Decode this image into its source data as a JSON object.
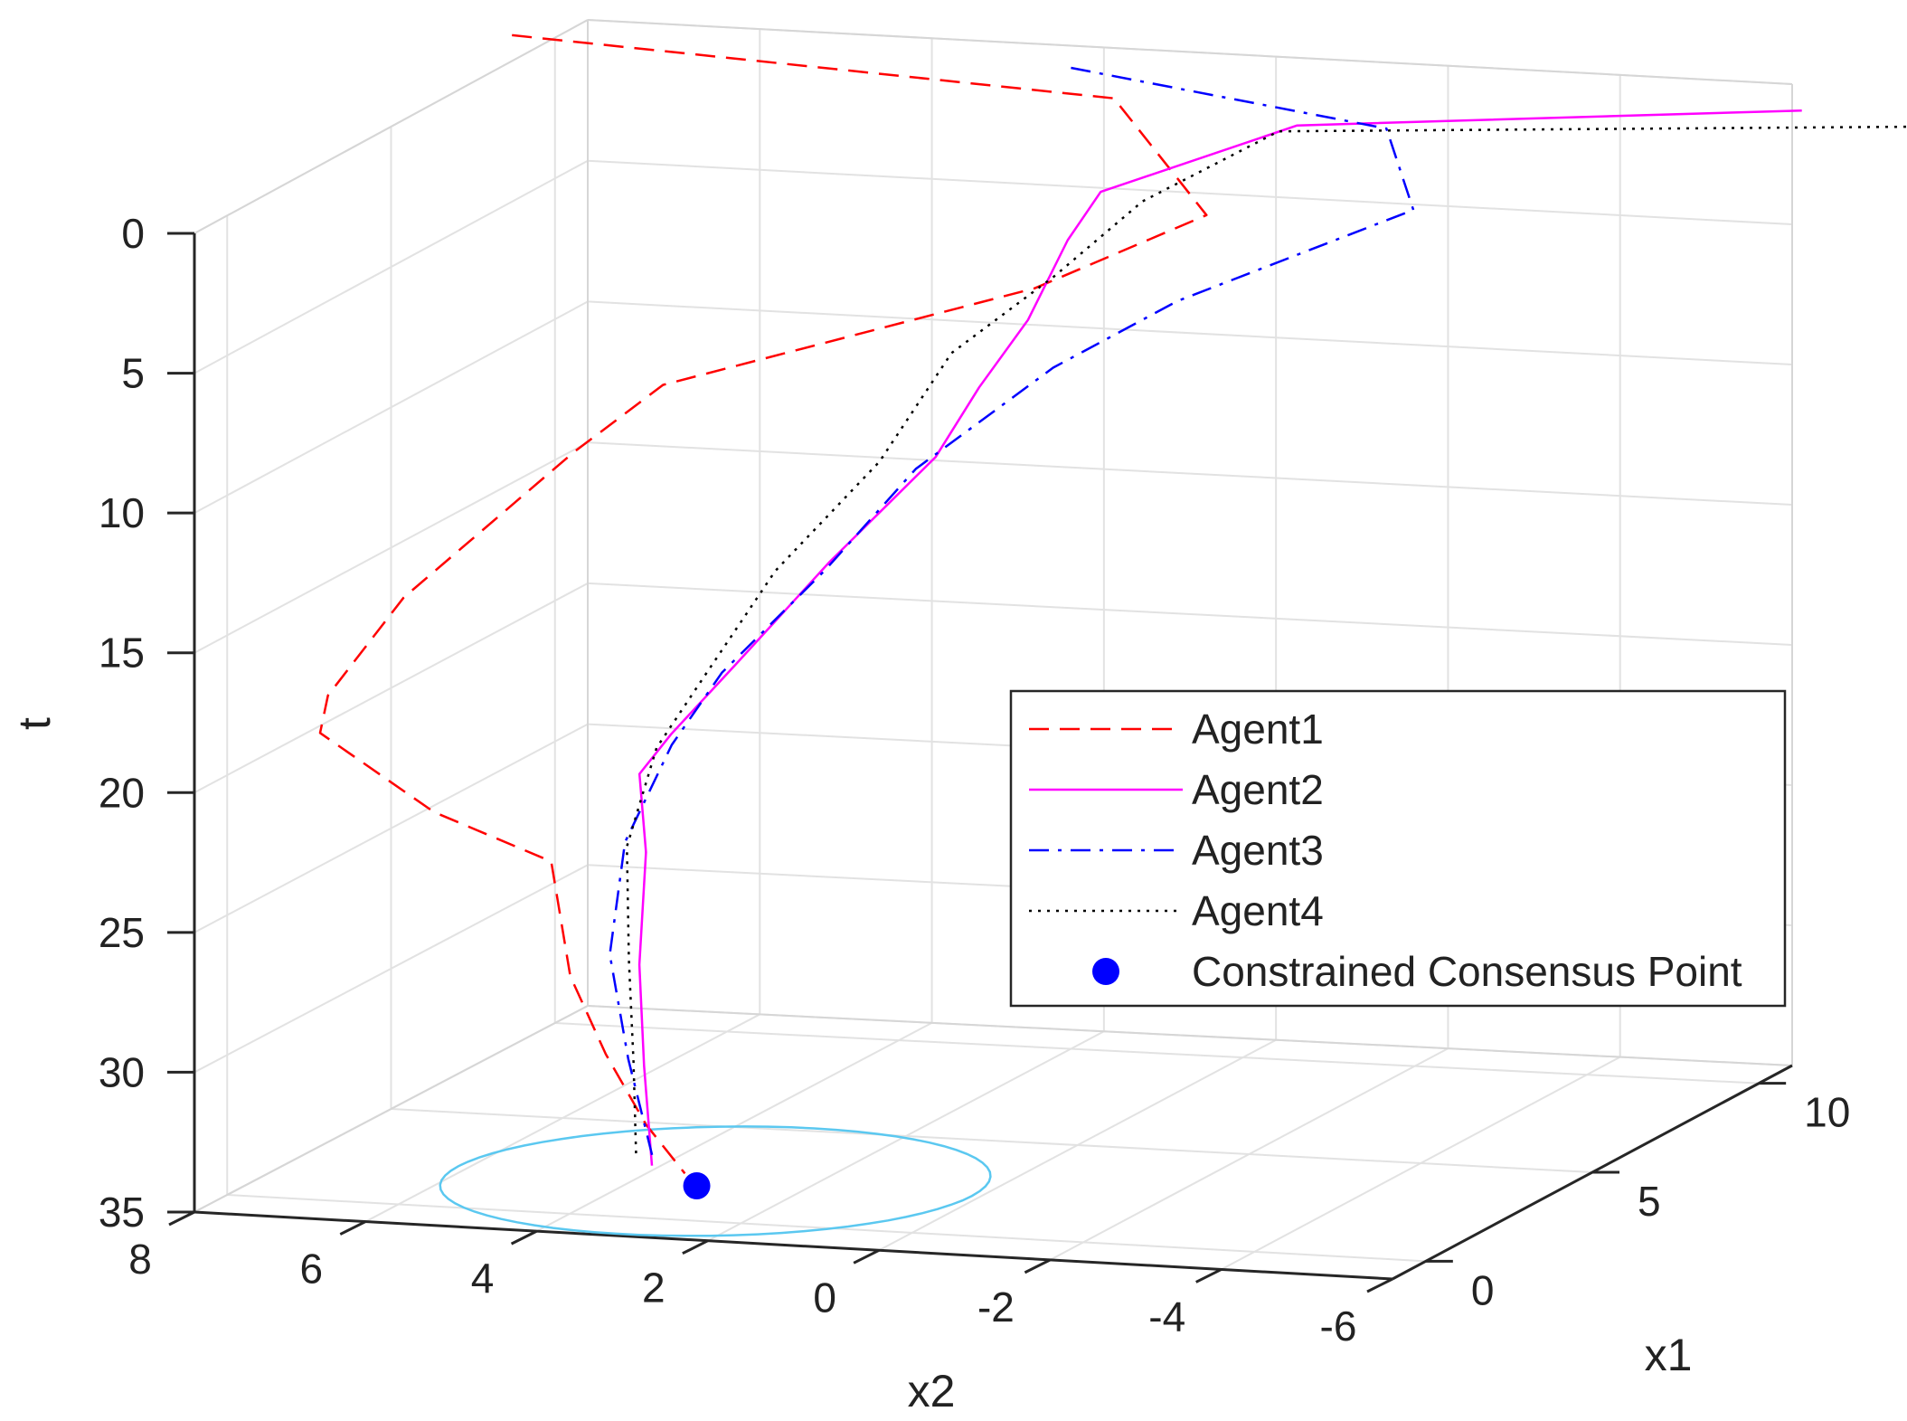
{
  "chart_data": {
    "type": "line",
    "title": "",
    "axes": {
      "x1": {
        "label": "x1",
        "ticks": [
          "0",
          "5",
          "10"
        ],
        "range": [
          -1,
          11
        ]
      },
      "x2": {
        "label": "x2",
        "ticks": [
          "8",
          "6",
          "4",
          "2",
          "0",
          "-2",
          "-4",
          "-6"
        ],
        "range": [
          8,
          -6
        ]
      },
      "t": {
        "label": "t",
        "ticks": [
          "0",
          "5",
          "10",
          "15",
          "20",
          "25",
          "30",
          "35"
        ],
        "range": [
          0,
          35
        ],
        "reversed": true
      }
    },
    "grid": true,
    "legend_position": "right",
    "series": [
      {
        "name": "Agent1",
        "color": "#ff0000",
        "style": "dashed",
        "points": [
          [
            10,
            8.5,
            0
          ],
          [
            10,
            1.5,
            1
          ],
          [
            7.6,
            -0.5,
            3
          ],
          [
            6.3,
            1.0,
            5
          ],
          [
            4.4,
            4.6,
            8
          ],
          [
            3.5,
            5.3,
            10
          ],
          [
            1.2,
            6.4,
            14
          ],
          [
            0.2,
            6.9,
            17
          ],
          [
            -0.3,
            6.8,
            18
          ],
          [
            -1.0,
            5.2,
            20
          ],
          [
            -1.6,
            3.6,
            21
          ],
          [
            -1.8,
            3.3,
            25
          ],
          [
            -1.5,
            3.0,
            28
          ],
          [
            -0.8,
            2.8,
            31
          ],
          [
            -0.4,
            2.5,
            33
          ]
        ]
      },
      {
        "name": "Agent2",
        "color": "#ff00ff",
        "style": "solid",
        "points": [
          [
            10,
            -6.5,
            0
          ],
          [
            9.3,
            -0.9,
            1
          ],
          [
            8.3,
            1.0,
            3
          ],
          [
            7.3,
            1.0,
            4
          ],
          [
            6.1,
            1.0,
            6
          ],
          [
            5.4,
            1.3,
            8
          ],
          [
            4.6,
            1.5,
            10
          ],
          [
            3.2,
            2.2,
            13
          ],
          [
            1.9,
            2.8,
            16
          ],
          [
            1.0,
            3.2,
            18
          ],
          [
            0.3,
            3.3,
            19
          ],
          [
            -0.8,
            2.8,
            21
          ],
          [
            -1.0,
            2.8,
            25
          ],
          [
            -0.6,
            2.9,
            29
          ],
          [
            -0.1,
            3.0,
            33
          ]
        ]
      },
      {
        "name": "Agent3",
        "color": "#0000ff",
        "style": "dashdot",
        "points": [
          [
            10,
            2.0,
            0
          ],
          [
            9.4,
            -1.9,
            1
          ],
          [
            8.4,
            -2.6,
            3
          ],
          [
            6.2,
            -0.7,
            5
          ],
          [
            5.3,
            0.4,
            7
          ],
          [
            4.0,
            1.5,
            10
          ],
          [
            2.8,
            2.1,
            13
          ],
          [
            1.5,
            2.8,
            16
          ],
          [
            0.5,
            3.0,
            18
          ],
          [
            -0.4,
            3.2,
            21
          ],
          [
            -0.6,
            3.3,
            25
          ],
          [
            -0.3,
            3.2,
            29
          ],
          [
            0.2,
            3.1,
            33
          ]
        ]
      },
      {
        "name": "Agent4",
        "color": "#000000",
        "style": "dotted",
        "points": [
          [
            10,
            -9.5,
            0
          ],
          [
            9.0,
            -0.8,
            1
          ],
          [
            8.0,
            0.4,
            3
          ],
          [
            6.9,
            1.0,
            5
          ],
          [
            5.6,
            1.7,
            7
          ],
          [
            4.2,
            2.0,
            10
          ],
          [
            2.6,
            2.6,
            13
          ],
          [
            1.2,
            2.9,
            16
          ],
          [
            0.3,
            3.1,
            18
          ],
          [
            -0.6,
            3.1,
            21
          ],
          [
            -0.8,
            3.0,
            25
          ],
          [
            -0.4,
            3.1,
            29
          ],
          [
            0.2,
            3.3,
            33
          ]
        ]
      },
      {
        "name": "Constrained Consensus Point",
        "color": "#0000ff",
        "style": "marker",
        "points": [
          [
            -0.3,
            2.4,
            33.5
          ]
        ]
      }
    ],
    "constraint_circle": {
      "color": "#5bc8f0",
      "center_x1": 0,
      "center_x2": 2.3,
      "radius": 3.0,
      "t": 33.5
    }
  }
}
